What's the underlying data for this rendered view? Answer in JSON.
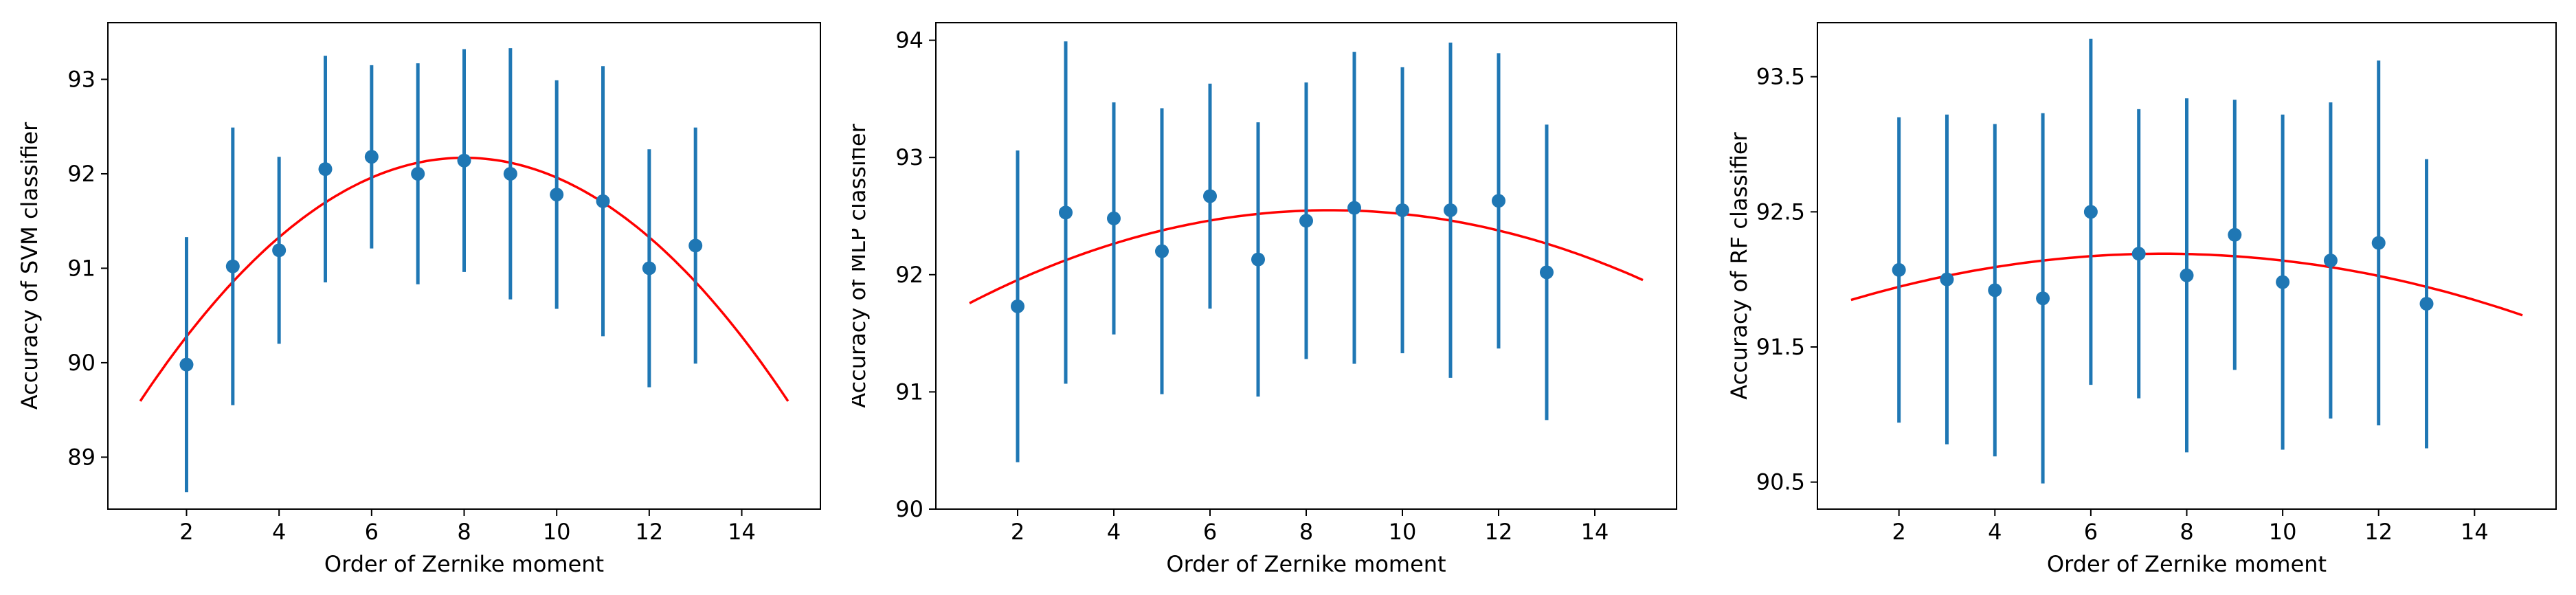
{
  "colors": {
    "points": "#1f77b4",
    "fit_curve": "#ff0000",
    "axes": "#000000",
    "background": "#ffffff"
  },
  "chart_data": [
    {
      "type": "scatter",
      "title": "",
      "xlabel": "Order of Zernike moment",
      "ylabel": "Accuracy of SVM classifier",
      "xlim": [
        0.3,
        15.7
      ],
      "ylim": [
        88.45,
        93.6
      ],
      "xticks": [
        2,
        4,
        6,
        8,
        10,
        12,
        14
      ],
      "yticks": [
        89,
        90,
        91,
        92,
        93
      ],
      "ytick_labels": [
        "89",
        "90",
        "91",
        "92",
        "93"
      ],
      "grid": false,
      "legend": "none",
      "series": [
        {
          "x": [
            2,
            3,
            4,
            5,
            6,
            7,
            8,
            9,
            10,
            11,
            12,
            13
          ],
          "y": [
            89.98,
            91.02,
            91.19,
            92.05,
            92.18,
            92.0,
            92.14,
            92.0,
            91.78,
            91.71,
            91.0,
            91.24
          ],
          "yerr": [
            1.35,
            1.47,
            0.99,
            1.2,
            0.97,
            1.17,
            1.18,
            1.33,
            1.21,
            1.43,
            1.26,
            1.25
          ]
        }
      ],
      "fit_curve": {
        "x_range": [
          1,
          15
        ],
        "peak_x": 8,
        "peak_y": 92.17,
        "curvature": 0.0526
      }
    },
    {
      "type": "scatter",
      "title": "",
      "xlabel": "Order of Zernike moment",
      "ylabel": "Accuracy of MLP classifier",
      "xlim": [
        0.3,
        15.7
      ],
      "ylim": [
        90.0,
        94.15
      ],
      "xticks": [
        2,
        4,
        6,
        8,
        10,
        12,
        14
      ],
      "yticks": [
        90,
        91,
        92,
        93,
        94
      ],
      "ytick_labels": [
        "90",
        "91",
        "92",
        "93",
        "94"
      ],
      "grid": false,
      "legend": "none",
      "series": [
        {
          "x": [
            2,
            3,
            4,
            5,
            6,
            7,
            8,
            9,
            10,
            11,
            12,
            13
          ],
          "y": [
            91.73,
            92.53,
            92.48,
            92.2,
            92.67,
            92.13,
            92.46,
            92.57,
            92.55,
            92.55,
            92.63,
            92.02
          ],
          "yerr": [
            1.33,
            1.46,
            0.99,
            1.22,
            0.96,
            1.17,
            1.18,
            1.33,
            1.22,
            1.43,
            1.26,
            1.26
          ]
        }
      ],
      "fit_curve": {
        "x_range": [
          1,
          15
        ],
        "peak_x": 8.5,
        "peak_y": 92.55,
        "curvature": 0.0141
      }
    },
    {
      "type": "scatter",
      "title": "",
      "xlabel": "Order of Zernike moment",
      "ylabel": "Accuracy of RF classifier",
      "xlim": [
        0.3,
        15.7
      ],
      "ylim": [
        90.3,
        93.9
      ],
      "xticks": [
        2,
        4,
        6,
        8,
        10,
        12,
        14
      ],
      "yticks": [
        90.5,
        91.5,
        92.5,
        93.5
      ],
      "ytick_labels": [
        "90.5",
        "91.5",
        "92.5",
        "93.5"
      ],
      "grid": false,
      "legend": "none",
      "series": [
        {
          "x": [
            2,
            3,
            4,
            5,
            6,
            7,
            8,
            9,
            10,
            11,
            12,
            13
          ],
          "y": [
            92.07,
            92.0,
            91.92,
            91.86,
            92.5,
            92.19,
            92.03,
            92.33,
            91.98,
            92.14,
            92.27,
            91.82
          ],
          "yerr": [
            1.13,
            1.22,
            1.23,
            1.37,
            1.28,
            1.07,
            1.31,
            1.0,
            1.24,
            1.17,
            1.35,
            1.07
          ]
        }
      ],
      "fit_curve": {
        "x_range": [
          1,
          15
        ],
        "peak_x": 7.5,
        "peak_y": 92.19,
        "curvature": 0.0081
      }
    }
  ]
}
